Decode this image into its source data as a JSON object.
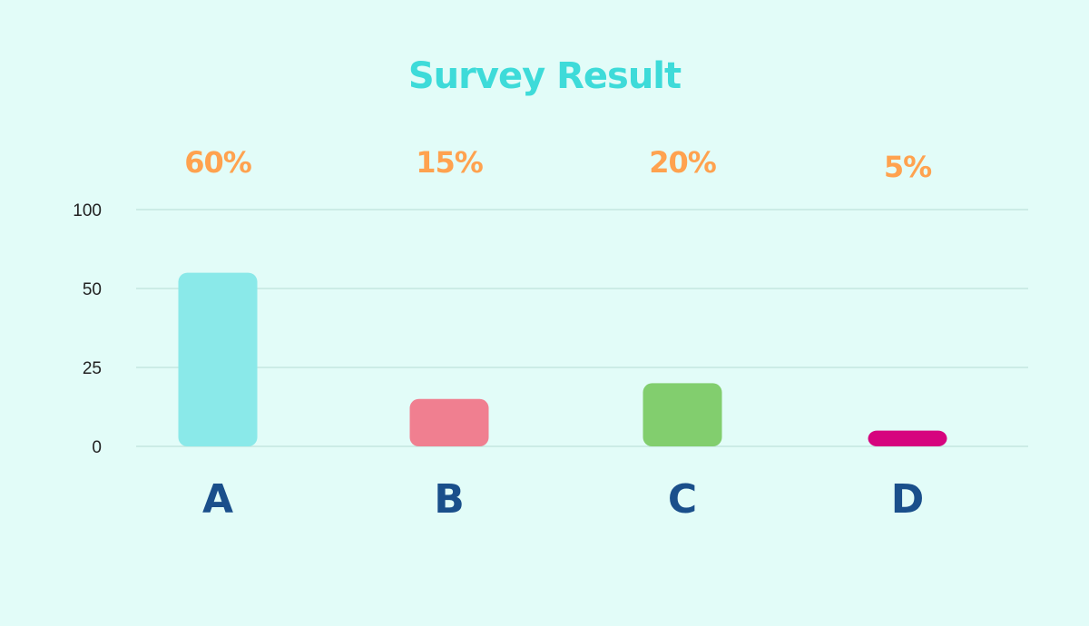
{
  "colors": {
    "background": "#e2fcf8",
    "title": "#3edbd9",
    "value_labels": "#ffa24f",
    "category_labels": "#1a4f8b",
    "tick_labels": "#222222",
    "gridlines": "#bfe3dc"
  },
  "chart_data": {
    "type": "bar",
    "title": "Survey Result",
    "xlabel": "",
    "ylabel": "",
    "categories": [
      "A",
      "B",
      "C",
      "D"
    ],
    "values": [
      60,
      15,
      20,
      5
    ],
    "value_labels": [
      "60%",
      "15%",
      "20%",
      "5%"
    ],
    "bar_colors": [
      "#8ae9e9",
      "#f07f90",
      "#82ce6e",
      "#d6047e"
    ],
    "yticks": [
      "0",
      "25",
      "50",
      "100"
    ],
    "grid": true,
    "legend": "none"
  }
}
